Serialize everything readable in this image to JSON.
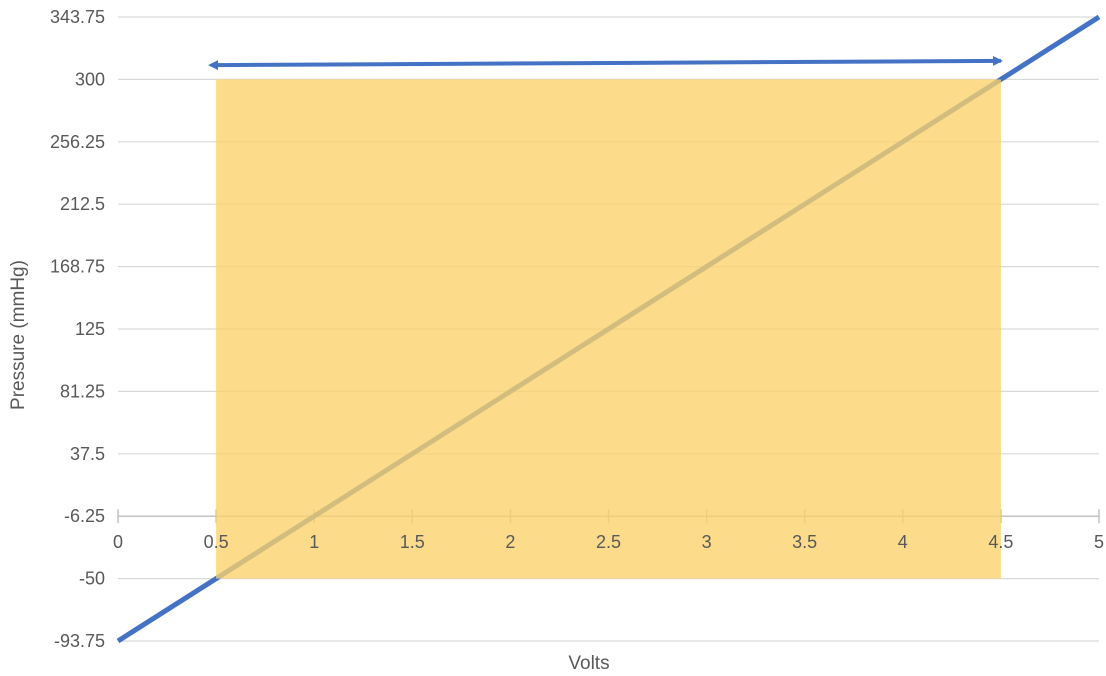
{
  "chart_data": {
    "type": "line",
    "xlabel": "Volts",
    "ylabel": "Pressure (mmHg)",
    "xlim": [
      0,
      5
    ],
    "ylim": [
      -93.75,
      343.75
    ],
    "x_ticks": [
      "0",
      "0.5",
      "1",
      "1.5",
      "2",
      "2.5",
      "3",
      "3.5",
      "4",
      "4.5",
      "5"
    ],
    "x_tick_values": [
      0,
      0.5,
      1,
      1.5,
      2,
      2.5,
      3,
      3.5,
      4,
      4.5,
      5
    ],
    "y_ticks": [
      "343.75",
      "300",
      "256.25",
      "212.5",
      "168.75",
      "125",
      "81.25",
      "37.5",
      "-6.25",
      "-50",
      "-93.75"
    ],
    "y_tick_values": [
      343.75,
      300,
      256.25,
      212.5,
      168.75,
      125,
      81.25,
      37.5,
      -6.25,
      -50,
      -93.75
    ],
    "x_axis_crosses_y_at": -6.25,
    "grid": true,
    "series": [
      {
        "x": [
          0,
          0.5,
          1,
          1.5,
          2,
          2.5,
          3,
          3.5,
          4,
          4.5,
          5
        ],
        "y": [
          -93.75,
          -50,
          -6.25,
          37.5,
          81.25,
          125,
          168.75,
          212.5,
          256.25,
          300,
          343.75
        ],
        "color": "#4472c4"
      }
    ],
    "shaded_region": {
      "x": [
        0.5,
        4.5
      ],
      "y": [
        -50,
        300
      ],
      "color": "#fbd26a",
      "opacity": 0.78
    },
    "range_arrow": {
      "x": [
        0.5,
        4.5
      ],
      "y": [
        310,
        313
      ],
      "color": "#4472c4",
      "double_headed": true
    }
  }
}
